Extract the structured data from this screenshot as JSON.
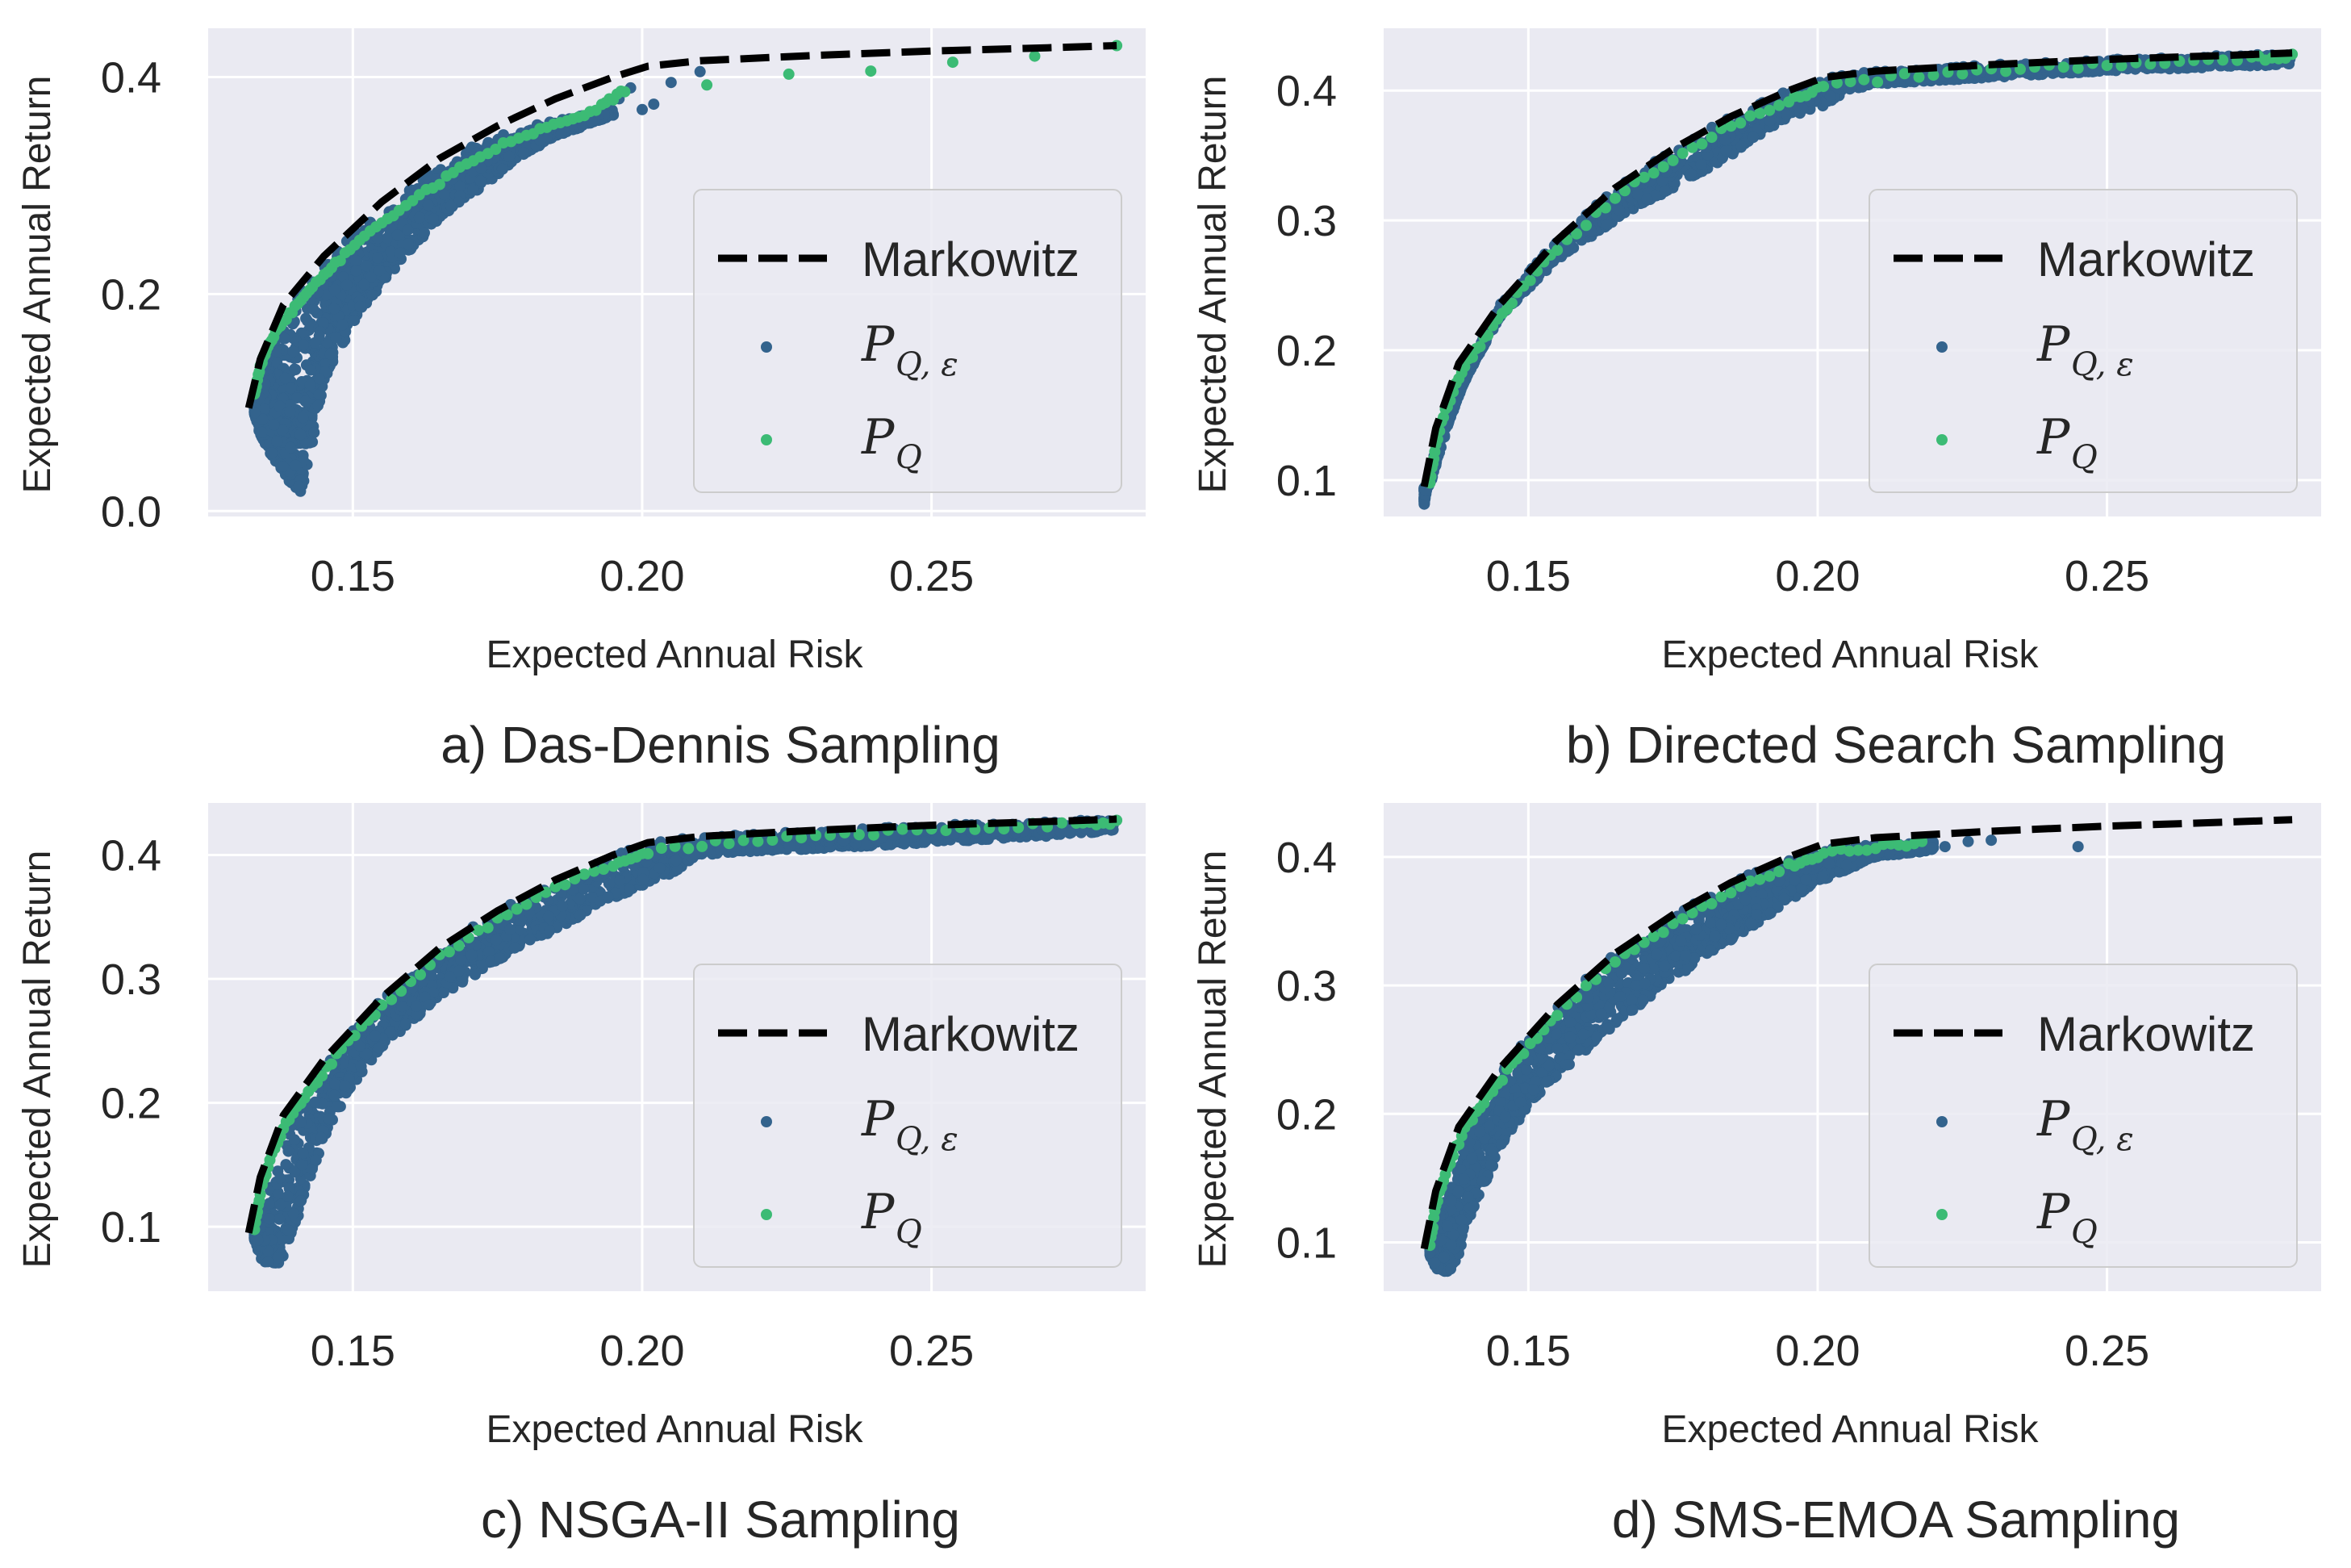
{
  "figure": {
    "colors": {
      "frontier": "#000000",
      "p_q_eps": "#33638d",
      "p_q": "#3cbb75",
      "background": "#eaeaf2",
      "grid": "#ffffff"
    },
    "legend": {
      "frontier_label": "Markowitz",
      "p_q_eps_main": "P",
      "p_q_eps_sub": "Q, ε",
      "p_q_main": "P",
      "p_q_sub": "Q"
    }
  },
  "chart_data": [
    {
      "type": "scatter",
      "title": "a) Das-Dennis Sampling",
      "xlabel": "Expected Annual Risk",
      "ylabel": "Expected Annual Return",
      "xlim": [
        0.125,
        0.287
      ],
      "ylim": [
        -0.005,
        0.445
      ],
      "xticks": [
        0.15,
        0.2,
        0.25
      ],
      "xtick_labels": [
        "0.15",
        "0.20",
        "0.25"
      ],
      "yticks": [
        0.0,
        0.2,
        0.4
      ],
      "ytick_labels": [
        "0.0",
        "0.2",
        "0.4"
      ],
      "legend_position": "center-right",
      "series": [
        {
          "name": "Markowitz",
          "kind": "dashed-line",
          "x": [
            0.132,
            0.134,
            0.138,
            0.145,
            0.155,
            0.165,
            0.175,
            0.185,
            0.195,
            0.201,
            0.21,
            0.23,
            0.25,
            0.27,
            0.282
          ],
          "y": [
            0.095,
            0.14,
            0.19,
            0.235,
            0.285,
            0.325,
            0.355,
            0.38,
            0.4,
            0.41,
            0.415,
            0.42,
            0.424,
            0.427,
            0.429
          ]
        },
        {
          "name": "P_Q,ε",
          "kind": "scatter-cloud",
          "upper_x": [
            0.133,
            0.136,
            0.14,
            0.145,
            0.15,
            0.155,
            0.16,
            0.165,
            0.17,
            0.175,
            0.18,
            0.185,
            0.19,
            0.195
          ],
          "upper_y": [
            0.1,
            0.16,
            0.2,
            0.225,
            0.255,
            0.275,
            0.3,
            0.32,
            0.335,
            0.345,
            0.355,
            0.36,
            0.365,
            0.37
          ],
          "lower_x": [
            0.133,
            0.134,
            0.136,
            0.138,
            0.14,
            0.141,
            0.142,
            0.145,
            0.15,
            0.155,
            0.16,
            0.165,
            0.17,
            0.175,
            0.18,
            0.185,
            0.19,
            0.195
          ],
          "lower_y": [
            0.09,
            0.07,
            0.05,
            0.035,
            0.02,
            0.015,
            0.035,
            0.12,
            0.17,
            0.21,
            0.24,
            0.27,
            0.29,
            0.31,
            0.33,
            0.345,
            0.355,
            0.365
          ],
          "extra_x": [
            0.196,
            0.198,
            0.2,
            0.202,
            0.205,
            0.21
          ],
          "extra_y": [
            0.38,
            0.39,
            0.37,
            0.375,
            0.395,
            0.405
          ]
        },
        {
          "name": "P_Q",
          "kind": "points",
          "x": [
            0.133,
            0.134,
            0.135,
            0.137,
            0.14,
            0.143,
            0.147,
            0.152,
            0.158,
            0.165,
            0.172,
            0.18,
            0.187,
            0.193,
            0.197,
            0.282
          ],
          "y": [
            0.11,
            0.135,
            0.15,
            0.17,
            0.19,
            0.21,
            0.23,
            0.255,
            0.28,
            0.305,
            0.33,
            0.35,
            0.36,
            0.375,
            0.39,
            0.429
          ]
        }
      ]
    },
    {
      "type": "scatter",
      "title": "b) Directed Search Sampling",
      "xlabel": "Expected Annual Risk",
      "ylabel": "Expected Annual Return",
      "xlim": [
        0.125,
        0.287
      ],
      "ylim": [
        0.072,
        0.448
      ],
      "xticks": [
        0.15,
        0.2,
        0.25
      ],
      "xtick_labels": [
        "0.15",
        "0.20",
        "0.25"
      ],
      "yticks": [
        0.1,
        0.2,
        0.3,
        0.4
      ],
      "ytick_labels": [
        "0.1",
        "0.2",
        "0.3",
        "0.4"
      ],
      "legend_position": "center-right",
      "series": [
        {
          "name": "Markowitz",
          "kind": "dashed-line",
          "x": [
            0.132,
            0.134,
            0.138,
            0.145,
            0.155,
            0.165,
            0.175,
            0.185,
            0.195,
            0.201,
            0.21,
            0.23,
            0.25,
            0.27,
            0.282
          ],
          "y": [
            0.095,
            0.14,
            0.19,
            0.235,
            0.285,
            0.325,
            0.355,
            0.38,
            0.4,
            0.41,
            0.415,
            0.42,
            0.424,
            0.427,
            0.429
          ]
        },
        {
          "name": "P_Q,ε",
          "kind": "scatter-cloud",
          "upper_x": [
            0.133,
            0.136,
            0.14,
            0.145,
            0.155,
            0.165,
            0.175,
            0.185,
            0.195,
            0.201,
            0.21,
            0.23,
            0.25,
            0.27,
            0.282
          ],
          "upper_y": [
            0.095,
            0.14,
            0.19,
            0.235,
            0.285,
            0.325,
            0.355,
            0.38,
            0.4,
            0.41,
            0.415,
            0.42,
            0.424,
            0.427,
            0.429
          ],
          "lower_x": [
            0.132,
            0.133,
            0.136,
            0.14,
            0.145,
            0.155,
            0.165,
            0.175,
            0.185,
            0.195,
            0.2,
            0.205,
            0.21,
            0.23,
            0.25,
            0.27,
            0.282
          ],
          "lower_y": [
            0.08,
            0.11,
            0.15,
            0.185,
            0.225,
            0.27,
            0.3,
            0.325,
            0.35,
            0.38,
            0.385,
            0.4,
            0.405,
            0.41,
            0.415,
            0.418,
            0.42
          ],
          "extra_x": [],
          "extra_y": []
        },
        {
          "name": "P_Q",
          "kind": "points",
          "x": [
            0.133,
            0.134,
            0.136,
            0.139,
            0.143,
            0.148,
            0.155,
            0.165,
            0.175,
            0.185,
            0.195,
            0.201,
            0.215,
            0.23,
            0.245,
            0.26,
            0.275,
            0.282
          ],
          "y": [
            0.1,
            0.13,
            0.16,
            0.19,
            0.215,
            0.245,
            0.28,
            0.32,
            0.35,
            0.375,
            0.395,
            0.405,
            0.413,
            0.418,
            0.421,
            0.424,
            0.427,
            0.428
          ]
        }
      ]
    },
    {
      "type": "scatter",
      "title": "c) NSGA-II Sampling",
      "xlabel": "Expected Annual Risk",
      "ylabel": "Expected Annual Return",
      "xlim": [
        0.125,
        0.287
      ],
      "ylim": [
        0.048,
        0.442
      ],
      "xticks": [
        0.15,
        0.2,
        0.25
      ],
      "xtick_labels": [
        "0.15",
        "0.20",
        "0.25"
      ],
      "yticks": [
        0.1,
        0.2,
        0.3,
        0.4
      ],
      "ytick_labels": [
        "0.1",
        "0.2",
        "0.3",
        "0.4"
      ],
      "legend_position": "center-right",
      "series": [
        {
          "name": "Markowitz",
          "kind": "dashed-line",
          "x": [
            0.132,
            0.134,
            0.138,
            0.145,
            0.155,
            0.165,
            0.175,
            0.185,
            0.195,
            0.201,
            0.21,
            0.23,
            0.25,
            0.27,
            0.282
          ],
          "y": [
            0.095,
            0.14,
            0.19,
            0.235,
            0.285,
            0.325,
            0.355,
            0.38,
            0.4,
            0.41,
            0.415,
            0.42,
            0.424,
            0.427,
            0.429
          ]
        },
        {
          "name": "P_Q,ε",
          "kind": "scatter-cloud",
          "upper_x": [
            0.133,
            0.136,
            0.14,
            0.145,
            0.155,
            0.165,
            0.175,
            0.185,
            0.195,
            0.201,
            0.21,
            0.23,
            0.25,
            0.27,
            0.282
          ],
          "upper_y": [
            0.095,
            0.14,
            0.19,
            0.235,
            0.285,
            0.325,
            0.355,
            0.38,
            0.4,
            0.41,
            0.415,
            0.42,
            0.424,
            0.427,
            0.429
          ],
          "lower_x": [
            0.133,
            0.134,
            0.136,
            0.138,
            0.14,
            0.142,
            0.145,
            0.15,
            0.155,
            0.165,
            0.175,
            0.185,
            0.195,
            0.205,
            0.21,
            0.23,
            0.25,
            0.27,
            0.282
          ],
          "lower_y": [
            0.09,
            0.075,
            0.065,
            0.075,
            0.1,
            0.13,
            0.17,
            0.215,
            0.245,
            0.285,
            0.315,
            0.34,
            0.365,
            0.385,
            0.4,
            0.405,
            0.41,
            0.415,
            0.42
          ],
          "extra_x": [],
          "extra_y": []
        },
        {
          "name": "P_Q",
          "kind": "points",
          "x": [
            0.133,
            0.134,
            0.136,
            0.139,
            0.143,
            0.148,
            0.155,
            0.165,
            0.175,
            0.185,
            0.195,
            0.201,
            0.215,
            0.23,
            0.245,
            0.26,
            0.275,
            0.282
          ],
          "y": [
            0.1,
            0.13,
            0.16,
            0.19,
            0.215,
            0.245,
            0.28,
            0.32,
            0.35,
            0.375,
            0.395,
            0.405,
            0.413,
            0.418,
            0.421,
            0.424,
            0.427,
            0.428
          ]
        }
      ]
    },
    {
      "type": "scatter",
      "title": "d) SMS-EMOA Sampling",
      "xlabel": "Expected Annual Risk",
      "ylabel": "Expected Annual Return",
      "xlim": [
        0.125,
        0.287
      ],
      "ylim": [
        0.062,
        0.442
      ],
      "xticks": [
        0.15,
        0.2,
        0.25
      ],
      "xtick_labels": [
        "0.15",
        "0.20",
        "0.25"
      ],
      "yticks": [
        0.1,
        0.2,
        0.3,
        0.4
      ],
      "ytick_labels": [
        "0.1",
        "0.2",
        "0.3",
        "0.4"
      ],
      "legend_position": "center-right",
      "series": [
        {
          "name": "Markowitz",
          "kind": "dashed-line",
          "x": [
            0.132,
            0.134,
            0.138,
            0.145,
            0.155,
            0.165,
            0.175,
            0.185,
            0.195,
            0.201,
            0.21,
            0.23,
            0.25,
            0.27,
            0.282
          ],
          "y": [
            0.095,
            0.14,
            0.19,
            0.235,
            0.285,
            0.325,
            0.355,
            0.38,
            0.4,
            0.41,
            0.415,
            0.42,
            0.424,
            0.427,
            0.429
          ]
        },
        {
          "name": "P_Q,ε",
          "kind": "scatter-cloud",
          "upper_x": [
            0.133,
            0.136,
            0.14,
            0.145,
            0.155,
            0.165,
            0.175,
            0.185,
            0.195,
            0.2,
            0.21,
            0.22
          ],
          "upper_y": [
            0.095,
            0.14,
            0.19,
            0.235,
            0.285,
            0.325,
            0.355,
            0.38,
            0.4,
            0.405,
            0.41,
            0.412
          ],
          "lower_x": [
            0.133,
            0.134,
            0.136,
            0.138,
            0.14,
            0.143,
            0.146,
            0.15,
            0.155,
            0.165,
            0.175,
            0.185,
            0.195,
            0.2,
            0.21,
            0.22
          ],
          "lower_y": [
            0.09,
            0.08,
            0.075,
            0.09,
            0.12,
            0.15,
            0.18,
            0.205,
            0.23,
            0.27,
            0.305,
            0.335,
            0.365,
            0.38,
            0.4,
            0.405
          ],
          "extra_x": [
            0.222,
            0.226,
            0.23,
            0.245
          ],
          "extra_y": [
            0.408,
            0.412,
            0.413,
            0.408
          ]
        },
        {
          "name": "P_Q",
          "kind": "points",
          "x": [
            0.133,
            0.134,
            0.136,
            0.139,
            0.143,
            0.148,
            0.155,
            0.165,
            0.175,
            0.185,
            0.195,
            0.201,
            0.21,
            0.218
          ],
          "y": [
            0.1,
            0.13,
            0.16,
            0.19,
            0.215,
            0.245,
            0.28,
            0.32,
            0.35,
            0.375,
            0.395,
            0.405,
            0.41,
            0.412
          ]
        }
      ]
    }
  ]
}
